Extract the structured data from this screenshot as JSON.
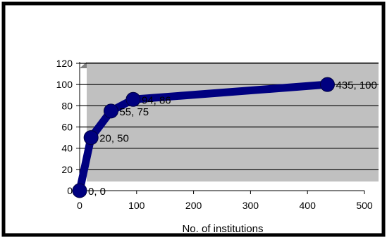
{
  "chart_data": {
    "type": "line",
    "title": "",
    "xlabel": "No. of institutions",
    "ylabel": "",
    "xlim": [
      0,
      500
    ],
    "ylim": [
      0,
      120
    ],
    "x_ticks": [
      0,
      100,
      200,
      300,
      400,
      500
    ],
    "y_ticks": [
      0,
      20,
      40,
      60,
      80,
      100,
      120
    ],
    "grid": "horizontal",
    "legend": "none",
    "series": [
      {
        "color": "#000080",
        "points": [
          {
            "x": 0,
            "y": 0,
            "label": "0, 0"
          },
          {
            "x": 20,
            "y": 50,
            "label": "20, 50"
          },
          {
            "x": 55,
            "y": 75,
            "label": "55, 75"
          },
          {
            "x": 94,
            "y": 86,
            "label": "94, 86"
          },
          {
            "x": 435,
            "y": 100,
            "label": "435, 100"
          }
        ]
      }
    ]
  },
  "style": {
    "plot_background": "#c0c0c0",
    "series_color": "#000080",
    "frame_color": "#000000"
  }
}
